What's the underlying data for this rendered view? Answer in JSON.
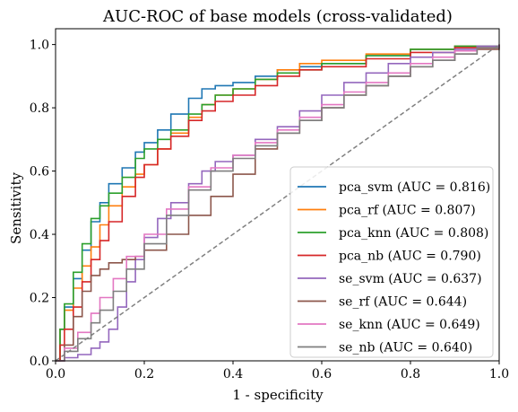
{
  "chart_data": {
    "type": "line",
    "title": "AUC-ROC of base models (cross-validated)",
    "xlabel": "1 - specificity",
    "ylabel": "Sensitivity",
    "xlim": [
      0.0,
      1.0
    ],
    "ylim": [
      0.0,
      1.05
    ],
    "xticks": [
      "0.0",
      "0.2",
      "0.4",
      "0.6",
      "0.8",
      "1.0"
    ],
    "yticks": [
      "0.0",
      "0.2",
      "0.4",
      "0.6",
      "0.8",
      "1.0"
    ],
    "grid": false,
    "legend_position": "lower-right",
    "reference_line": {
      "style": "dashed",
      "color": "#808080",
      "x": [
        0,
        1
      ],
      "y": [
        0,
        1
      ]
    },
    "series": [
      {
        "name": "pca_svm (AUC = 0.816)",
        "color": "#1f77b4",
        "x": [
          0,
          0.01,
          0.02,
          0.04,
          0.06,
          0.08,
          0.1,
          0.12,
          0.15,
          0.18,
          0.2,
          0.23,
          0.26,
          0.3,
          0.33,
          0.36,
          0.4,
          0.45,
          0.5,
          0.55,
          0.6,
          0.7,
          0.8,
          0.9,
          1.0
        ],
        "y": [
          0,
          0.1,
          0.17,
          0.26,
          0.35,
          0.44,
          0.5,
          0.56,
          0.61,
          0.66,
          0.69,
          0.73,
          0.78,
          0.83,
          0.86,
          0.87,
          0.88,
          0.9,
          0.92,
          0.93,
          0.94,
          0.965,
          0.985,
          0.995,
          1.0
        ]
      },
      {
        "name": "pca_rf (AUC = 0.807)",
        "color": "#ff7f0e",
        "x": [
          0,
          0.01,
          0.02,
          0.04,
          0.06,
          0.08,
          0.1,
          0.12,
          0.15,
          0.18,
          0.2,
          0.23,
          0.26,
          0.3,
          0.33,
          0.36,
          0.4,
          0.45,
          0.5,
          0.55,
          0.6,
          0.7,
          0.8,
          0.9,
          1.0
        ],
        "y": [
          0,
          0.1,
          0.16,
          0.23,
          0.3,
          0.36,
          0.43,
          0.49,
          0.55,
          0.59,
          0.62,
          0.67,
          0.72,
          0.77,
          0.81,
          0.84,
          0.86,
          0.89,
          0.92,
          0.94,
          0.95,
          0.97,
          0.985,
          0.995,
          1.0
        ]
      },
      {
        "name": "pca_knn (AUC = 0.808)",
        "color": "#2ca02c",
        "x": [
          0,
          0.01,
          0.02,
          0.04,
          0.06,
          0.08,
          0.1,
          0.12,
          0.15,
          0.18,
          0.2,
          0.23,
          0.26,
          0.3,
          0.33,
          0.36,
          0.4,
          0.45,
          0.5,
          0.55,
          0.6,
          0.7,
          0.8,
          0.9,
          1.0
        ],
        "y": [
          0,
          0.1,
          0.18,
          0.28,
          0.37,
          0.45,
          0.49,
          0.53,
          0.58,
          0.64,
          0.67,
          0.7,
          0.73,
          0.78,
          0.81,
          0.84,
          0.86,
          0.89,
          0.91,
          0.92,
          0.94,
          0.965,
          0.985,
          0.995,
          1.0
        ]
      },
      {
        "name": "pca_nb (AUC = 0.790)",
        "color": "#d62728",
        "x": [
          0,
          0.01,
          0.02,
          0.04,
          0.06,
          0.08,
          0.1,
          0.12,
          0.15,
          0.18,
          0.2,
          0.23,
          0.26,
          0.3,
          0.33,
          0.36,
          0.4,
          0.45,
          0.5,
          0.55,
          0.6,
          0.7,
          0.8,
          0.9,
          1.0
        ],
        "y": [
          0,
          0.05,
          0.1,
          0.17,
          0.25,
          0.32,
          0.38,
          0.44,
          0.52,
          0.58,
          0.62,
          0.67,
          0.71,
          0.76,
          0.79,
          0.82,
          0.84,
          0.87,
          0.9,
          0.92,
          0.93,
          0.955,
          0.975,
          0.99,
          1.0
        ]
      },
      {
        "name": "se_svm (AUC = 0.637)",
        "color": "#9467bd",
        "x": [
          0,
          0.02,
          0.05,
          0.08,
          0.1,
          0.12,
          0.14,
          0.16,
          0.18,
          0.2,
          0.23,
          0.26,
          0.3,
          0.33,
          0.36,
          0.4,
          0.45,
          0.5,
          0.55,
          0.6,
          0.65,
          0.7,
          0.75,
          0.8,
          0.85,
          0.9,
          0.95,
          1.0
        ],
        "y": [
          0,
          0.01,
          0.02,
          0.04,
          0.06,
          0.1,
          0.17,
          0.25,
          0.32,
          0.39,
          0.45,
          0.5,
          0.56,
          0.6,
          0.63,
          0.65,
          0.7,
          0.74,
          0.79,
          0.84,
          0.88,
          0.91,
          0.94,
          0.96,
          0.975,
          0.985,
          0.995,
          1.0
        ]
      },
      {
        "name": "se_rf (AUC = 0.644)",
        "color": "#8c564b",
        "x": [
          0,
          0.02,
          0.04,
          0.06,
          0.08,
          0.1,
          0.12,
          0.15,
          0.18,
          0.2,
          0.25,
          0.3,
          0.35,
          0.4,
          0.45,
          0.5,
          0.55,
          0.6,
          0.65,
          0.7,
          0.75,
          0.8,
          0.85,
          0.9,
          0.95,
          1.0
        ],
        "y": [
          0,
          0.05,
          0.14,
          0.22,
          0.27,
          0.29,
          0.31,
          0.32,
          0.33,
          0.35,
          0.4,
          0.46,
          0.52,
          0.59,
          0.67,
          0.72,
          0.76,
          0.8,
          0.84,
          0.87,
          0.9,
          0.93,
          0.95,
          0.97,
          0.985,
          1.0
        ]
      },
      {
        "name": "se_knn (AUC = 0.649)",
        "color": "#e377c2",
        "x": [
          0,
          0.02,
          0.05,
          0.08,
          0.1,
          0.13,
          0.16,
          0.2,
          0.25,
          0.3,
          0.35,
          0.4,
          0.45,
          0.5,
          0.55,
          0.6,
          0.65,
          0.7,
          0.75,
          0.8,
          0.85,
          0.9,
          0.95,
          1.0
        ],
        "y": [
          0,
          0.04,
          0.09,
          0.15,
          0.2,
          0.26,
          0.33,
          0.4,
          0.48,
          0.55,
          0.61,
          0.65,
          0.69,
          0.73,
          0.77,
          0.81,
          0.85,
          0.88,
          0.91,
          0.94,
          0.96,
          0.98,
          0.99,
          1.0
        ]
      },
      {
        "name": "se_nb (AUC = 0.640)",
        "color": "#7f7f7f",
        "x": [
          0,
          0.02,
          0.05,
          0.08,
          0.1,
          0.13,
          0.16,
          0.2,
          0.25,
          0.3,
          0.35,
          0.4,
          0.45,
          0.5,
          0.55,
          0.6,
          0.65,
          0.7,
          0.75,
          0.8,
          0.85,
          0.9,
          0.95,
          1.0
        ],
        "y": [
          0,
          0.03,
          0.07,
          0.12,
          0.16,
          0.22,
          0.29,
          0.37,
          0.46,
          0.54,
          0.6,
          0.64,
          0.68,
          0.72,
          0.76,
          0.8,
          0.84,
          0.87,
          0.9,
          0.93,
          0.95,
          0.97,
          0.99,
          1.0
        ]
      }
    ]
  }
}
